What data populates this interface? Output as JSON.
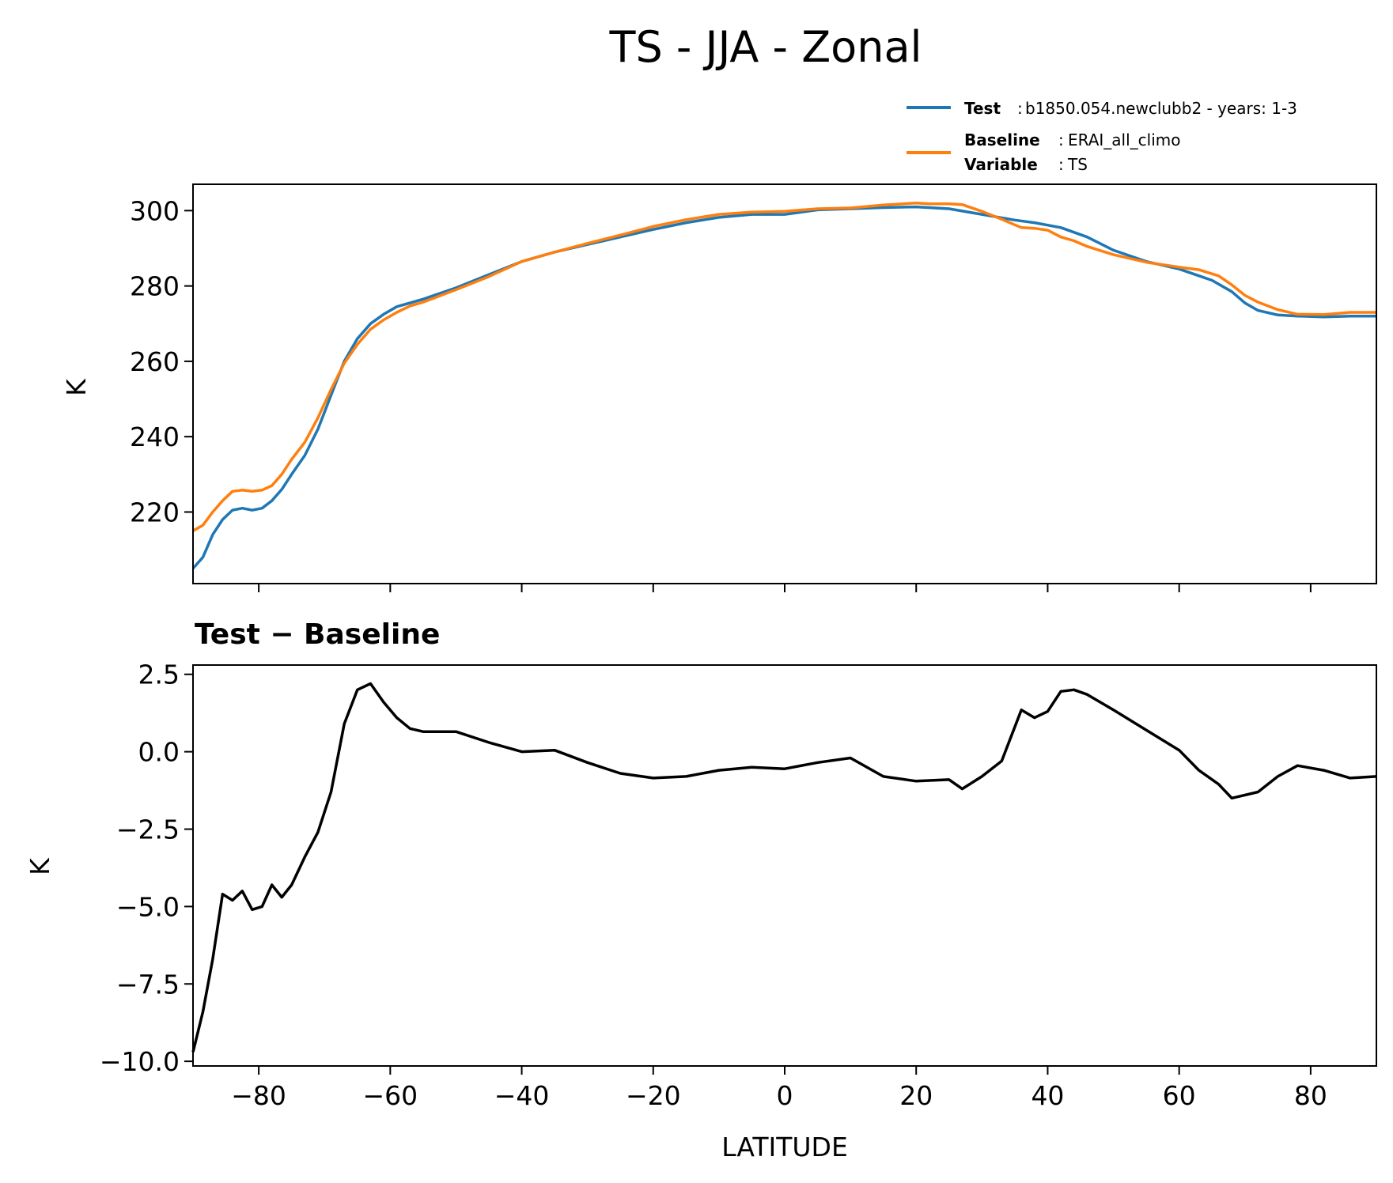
{
  "chart_data": [
    {
      "type": "line",
      "title": "TS - JJA - Zonal",
      "xlabel": "",
      "ylabel": "K",
      "xlim": [
        -90,
        90
      ],
      "ylim": [
        201,
        307
      ],
      "xticks": [
        -80,
        -60,
        -40,
        -20,
        0,
        20,
        40,
        60,
        80
      ],
      "yticks": [
        220,
        240,
        260,
        280,
        300
      ],
      "ytick_labels": [
        "220",
        "240",
        "260",
        "280",
        "300"
      ],
      "legend": [
        {
          "key": "Test",
          "value": "b1850.054.newclubb2 - years: 1-3",
          "color": "#1f77b4"
        },
        {
          "key": "Baseline",
          "value": "ERAI_all_climo",
          "color": "#ff7f0e"
        },
        {
          "key": "Variable",
          "value": "TS",
          "color": ""
        }
      ],
      "series": [
        {
          "name": "Test",
          "color": "#1f77b4",
          "x": [
            -90,
            -88.5,
            -87,
            -85.5,
            -84,
            -82.5,
            -81,
            -79.5,
            -78,
            -76.5,
            -75,
            -73,
            -71,
            -69,
            -67,
            -65,
            -63,
            -61,
            -59,
            -57,
            -55,
            -50,
            -45,
            -40,
            -35,
            -30,
            -25,
            -20,
            -15,
            -10,
            -5,
            0,
            5,
            10,
            15,
            20,
            25,
            30,
            35,
            38,
            42,
            46,
            50,
            55,
            60,
            65,
            68,
            70,
            72,
            75,
            78,
            82,
            86,
            90
          ],
          "values": [
            205,
            208,
            214,
            218,
            220.5,
            221,
            220.5,
            221,
            223,
            226,
            230,
            235,
            242,
            251,
            260,
            266,
            270,
            272.5,
            274.5,
            275.5,
            276.5,
            279.5,
            283,
            286.5,
            289,
            291,
            293,
            295,
            296.8,
            298.2,
            299,
            299,
            300.2,
            300.5,
            300.8,
            301,
            300.5,
            299,
            297.5,
            296.8,
            295.5,
            293,
            289.5,
            286.5,
            284.5,
            281.5,
            278.5,
            275.5,
            273.5,
            272.3,
            272,
            271.8,
            272,
            272
          ]
        },
        {
          "name": "Baseline",
          "color": "#ff7f0e",
          "x": [
            -90,
            -88.5,
            -87,
            -85.5,
            -84,
            -82.5,
            -81,
            -79.5,
            -78,
            -76.5,
            -75,
            -73,
            -71,
            -69,
            -67,
            -65,
            -63,
            -61,
            -59,
            -57,
            -55,
            -50,
            -45,
            -40,
            -35,
            -30,
            -25,
            -20,
            -15,
            -10,
            -5,
            0,
            5,
            10,
            15,
            20,
            22,
            25,
            27,
            30,
            33,
            36,
            38,
            40,
            42,
            44,
            46,
            50,
            55,
            60,
            63,
            66,
            68,
            70,
            72,
            75,
            78,
            82,
            86,
            90
          ],
          "values": [
            215,
            216.5,
            220,
            223,
            225.5,
            225.8,
            225.5,
            225.8,
            227,
            230,
            234,
            238.5,
            245,
            252.5,
            259.5,
            264.5,
            268.5,
            271,
            273,
            274.7,
            275.7,
            279,
            282.5,
            286.5,
            289,
            291.3,
            293.5,
            295.8,
            297.6,
            299,
            299.6,
            299.8,
            300.5,
            300.7,
            301.5,
            302,
            301.8,
            301.8,
            301.6,
            299.8,
            297.7,
            295.5,
            295.3,
            294.8,
            293,
            292,
            290.5,
            288.3,
            286.3,
            285,
            284.3,
            282.7,
            280.3,
            277.5,
            275.7,
            273.7,
            272.5,
            272.4,
            273,
            273
          ]
        }
      ]
    },
    {
      "type": "line",
      "title": "Test − Baseline",
      "xlabel": "LATITUDE",
      "ylabel": "K",
      "xlim": [
        -90,
        90
      ],
      "ylim": [
        -10.15,
        2.8
      ],
      "xticks": [
        -80,
        -60,
        -40,
        -20,
        0,
        20,
        40,
        60,
        80
      ],
      "xtick_labels": [
        "−80",
        "−60",
        "−40",
        "−20",
        "0",
        "20",
        "40",
        "60",
        "80"
      ],
      "yticks": [
        -10,
        -7.5,
        -5,
        -2.5,
        0,
        2.5
      ],
      "ytick_labels": [
        "−10.0",
        "−7.5",
        "−5.0",
        "−2.5",
        "0.0",
        "2.5"
      ],
      "series": [
        {
          "name": "Test − Baseline",
          "color": "#000000",
          "x": [
            -90,
            -88.5,
            -87,
            -85.5,
            -84,
            -82.5,
            -81,
            -79.5,
            -78,
            -76.5,
            -75,
            -73,
            -71,
            -69,
            -67,
            -65,
            -63,
            -61,
            -59,
            -57,
            -55,
            -50,
            -45,
            -40,
            -35,
            -30,
            -25,
            -20,
            -15,
            -10,
            -5,
            0,
            5,
            10,
            15,
            20,
            25,
            27,
            30,
            33,
            36,
            38,
            40,
            42,
            44,
            46,
            50,
            55,
            60,
            63,
            66,
            68,
            70,
            72,
            75,
            78,
            82,
            86,
            90
          ],
          "values": [
            -9.7,
            -8.4,
            -6.7,
            -4.6,
            -4.8,
            -4.5,
            -5.1,
            -5.0,
            -4.3,
            -4.7,
            -4.3,
            -3.4,
            -2.6,
            -1.3,
            0.9,
            2.0,
            2.2,
            1.6,
            1.1,
            0.75,
            0.65,
            0.65,
            0.3,
            0.0,
            0.05,
            -0.35,
            -0.7,
            -0.85,
            -0.8,
            -0.6,
            -0.5,
            -0.55,
            -0.35,
            -0.2,
            -0.8,
            -0.95,
            -0.9,
            -1.2,
            -0.8,
            -0.3,
            1.35,
            1.1,
            1.3,
            1.95,
            2.0,
            1.85,
            1.35,
            0.7,
            0.05,
            -0.6,
            -1.05,
            -1.5,
            -1.4,
            -1.3,
            -0.8,
            -0.45,
            -0.6,
            -0.85,
            -0.8
          ]
        }
      ]
    }
  ]
}
